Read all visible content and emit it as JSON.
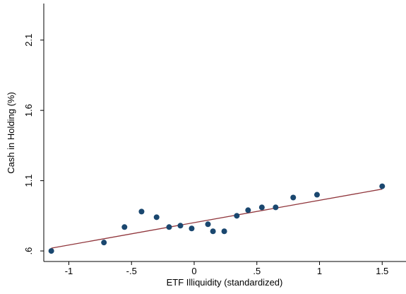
{
  "chart_data": {
    "type": "scatter",
    "xlabel": "ETF Illiquidity (standardized)",
    "ylabel": "Cash in Holding (%)",
    "x": [
      -1.14,
      -0.72,
      -0.556,
      -0.42,
      -0.3,
      -0.2,
      -0.11,
      -0.02,
      0.11,
      0.15,
      0.24,
      0.34,
      0.43,
      0.54,
      0.65,
      0.79,
      0.98,
      1.5
    ],
    "values": [
      0.6,
      0.66,
      0.77,
      0.88,
      0.84,
      0.77,
      0.78,
      0.76,
      0.79,
      0.74,
      0.74,
      0.85,
      0.89,
      0.91,
      0.91,
      0.98,
      1.0,
      1.06
    ],
    "color": "#1a476f",
    "fit_line": {
      "x": [
        -1.14,
        1.5
      ],
      "values": [
        0.62,
        1.04
      ],
      "color": "#90353b"
    },
    "xlim": [
      -1.2,
      1.69
    ],
    "ylim": [
      0.525,
      2.36
    ],
    "xticks": [
      -1,
      {
        "value": -0.5,
        "label": "-.5"
      },
      0,
      {
        "value": 0.5,
        "label": ".5"
      },
      1,
      1.5
    ],
    "yticks": [
      {
        "value": 0.6,
        "label": ".6"
      },
      1.1,
      1.6,
      2.1
    ]
  }
}
